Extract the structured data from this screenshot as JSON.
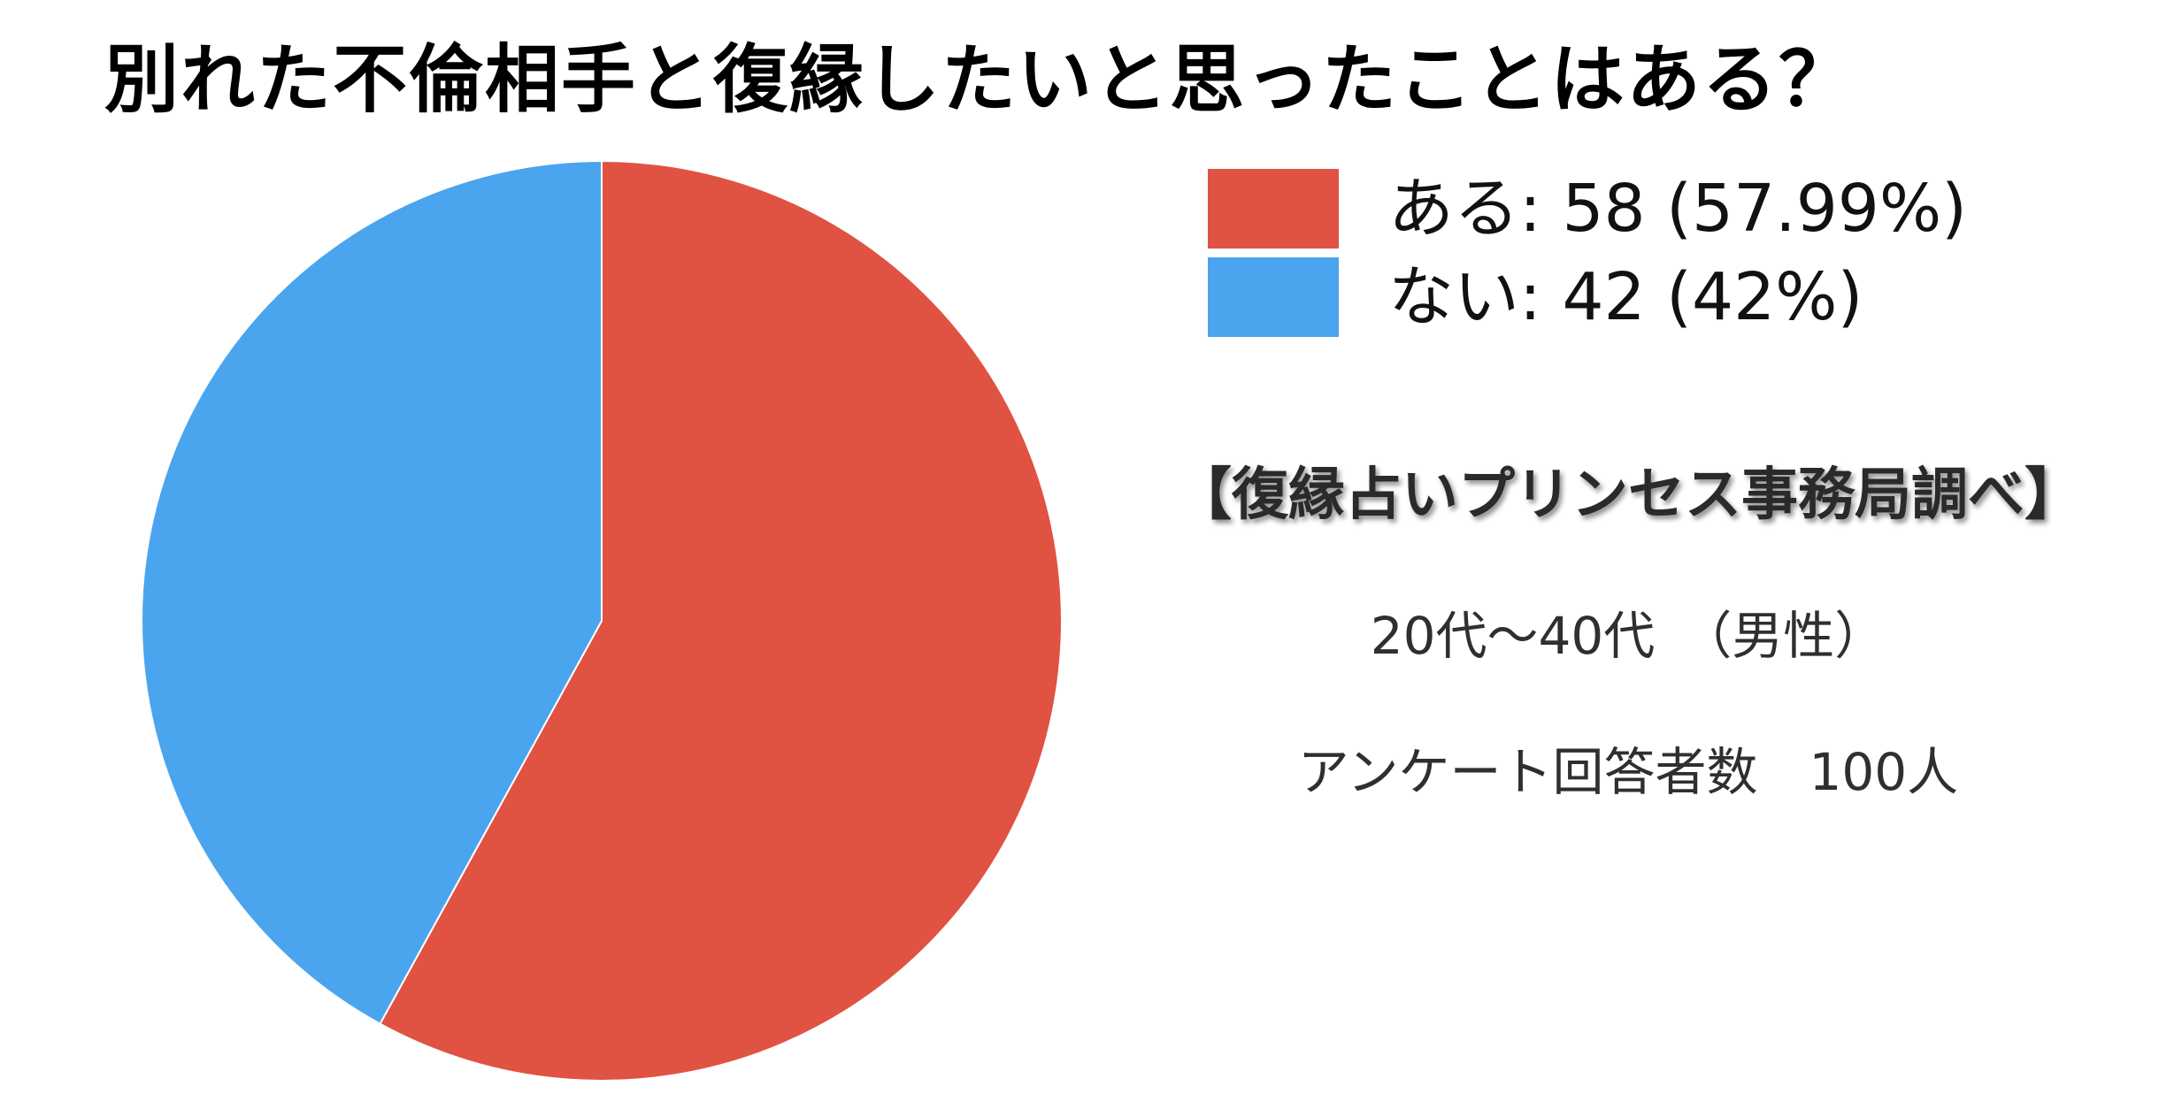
{
  "chart_data": {
    "type": "pie",
    "title": "別れた不倫相手と復縁したいと思ったことはある？",
    "slices": [
      {
        "label": "ある",
        "value": 58,
        "percent_label": "57.99%",
        "color": "#e05242"
      },
      {
        "label": "ない",
        "value": 42,
        "percent_label": "42%",
        "color": "#4aa5ee"
      }
    ],
    "legend": [
      {
        "text": "ある: 58 (57.99%)",
        "color": "#e05242"
      },
      {
        "text": "ない: 42 (42%)",
        "color": "#4aa5ee"
      }
    ],
    "legend_position": "right",
    "start": "top",
    "direction": "clockwise"
  },
  "annotations": {
    "source": "【復縁占いプリンセス事務局調べ】",
    "demographic": "20代〜40代　（男性）",
    "respondents": "アンケート回答者数　100人"
  }
}
